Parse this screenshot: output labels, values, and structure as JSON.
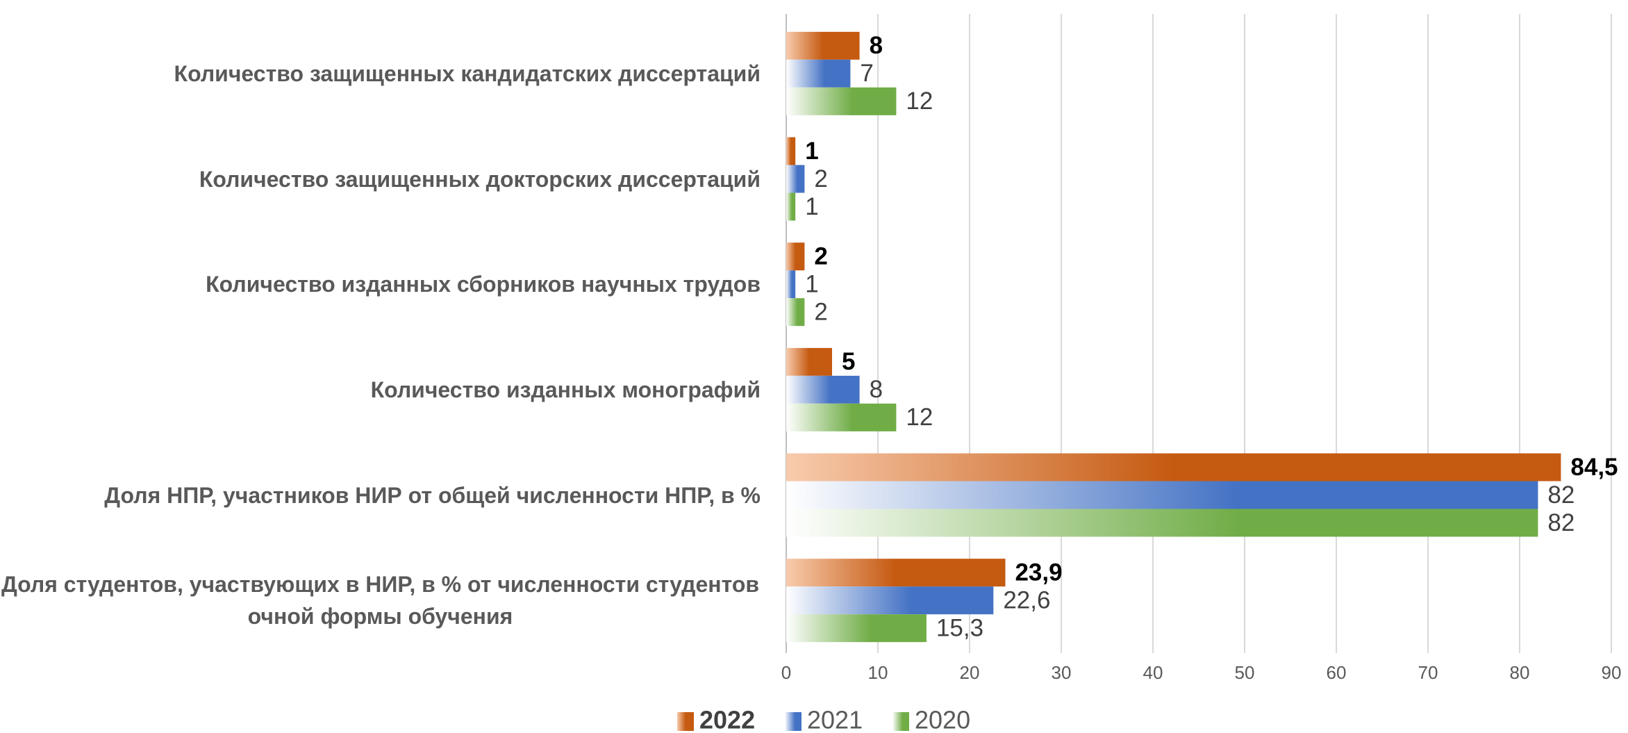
{
  "chart_data": {
    "type": "bar",
    "orientation": "horizontal",
    "categories": [
      "Количество защищенных кандидатских диссертаций",
      "Количество защищенных докторских диссертаций",
      "Количество изданных сборников научных трудов",
      "Количество изданных монографий",
      "Доля НПР, участников НИР от общей численности НПР, в %",
      "Доля студентов, участвующих в НИР, в % от численности студентов очной формы обучения"
    ],
    "series": [
      {
        "name": "2022",
        "color": "#c55a11",
        "values": [
          8,
          1,
          2,
          5,
          84.5,
          23.9
        ],
        "value_labels": [
          "8",
          "1",
          "2",
          "5",
          "84,5",
          "23,9"
        ]
      },
      {
        "name": "2021",
        "color": "#4472c4",
        "values": [
          7,
          2,
          1,
          8,
          82,
          22.6
        ],
        "value_labels": [
          "7",
          "2",
          "1",
          "8",
          "82",
          "22,6"
        ]
      },
      {
        "name": "2020",
        "color": "#70ad47",
        "values": [
          12,
          1,
          2,
          12,
          82,
          15.3
        ],
        "value_labels": [
          "12",
          "1",
          "2",
          "12",
          "82",
          "15,3"
        ]
      }
    ],
    "xlim": [
      0,
      90
    ],
    "xticks": [
      0,
      10,
      20,
      30,
      40,
      50,
      60,
      70,
      80,
      90
    ],
    "grid": true,
    "legend": "bottom"
  }
}
